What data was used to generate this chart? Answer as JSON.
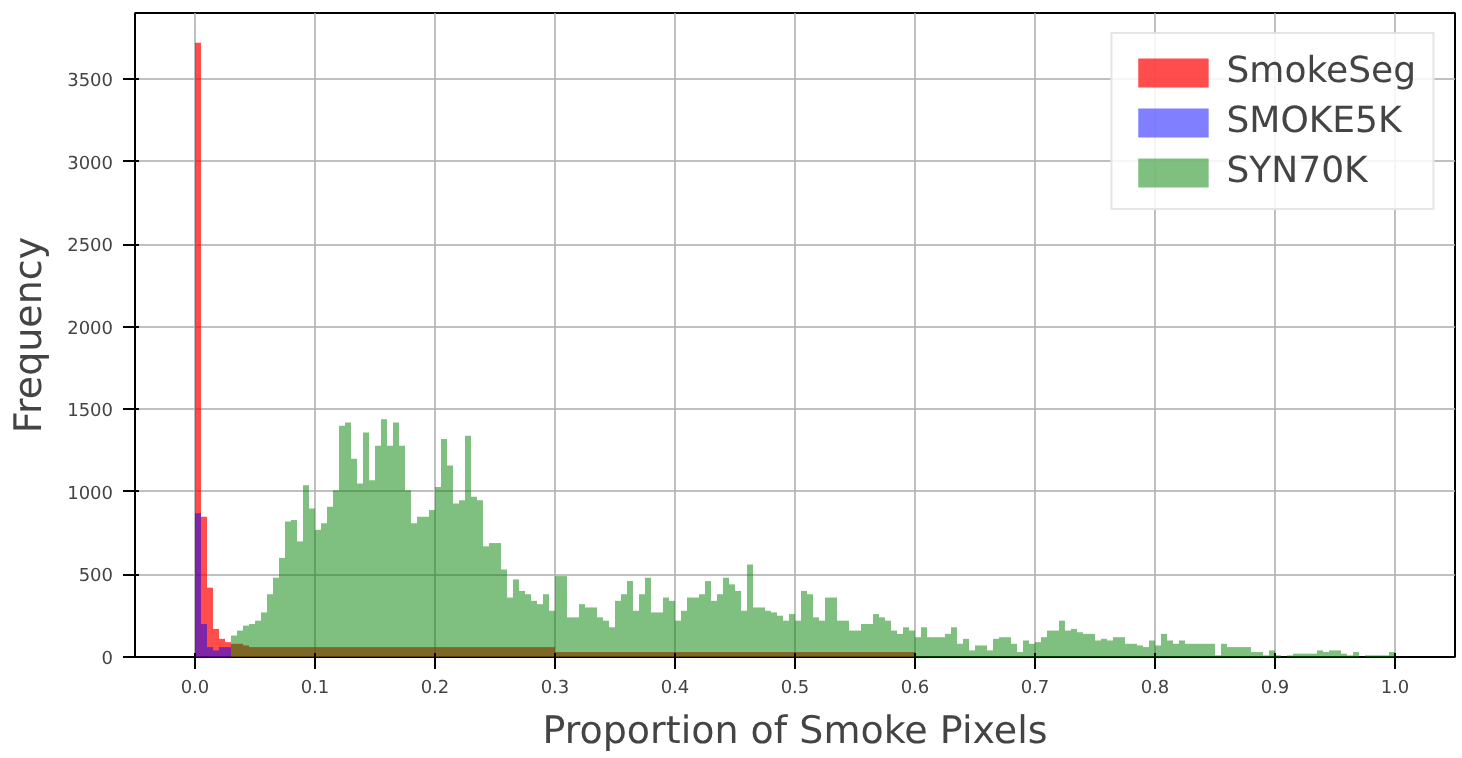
{
  "chart_data": {
    "type": "histogram",
    "xlabel": "Proportion of Smoke Pixels",
    "ylabel": "Frequency",
    "bins": [
      0,
      0.005,
      0.01,
      0.015,
      0.02,
      0.025,
      0.03,
      0.035,
      0.04,
      0.045,
      0.05,
      0.055,
      0.06,
      0.065,
      0.07,
      0.075,
      0.08,
      0.085,
      0.09,
      0.095,
      0.1,
      0.105,
      0.11,
      0.115,
      0.12,
      0.125,
      0.13,
      0.135,
      0.14,
      0.145,
      0.15,
      0.155,
      0.16,
      0.165,
      0.17,
      0.175,
      0.18,
      0.185,
      0.19,
      0.195,
      0.2,
      0.205,
      0.21,
      0.215,
      0.22,
      0.225,
      0.23,
      0.235,
      0.24,
      0.245,
      0.25,
      0.255,
      0.26,
      0.265,
      0.27,
      0.275,
      0.28,
      0.285,
      0.29,
      0.295,
      0.3,
      0.305,
      0.31,
      0.315,
      0.32,
      0.325,
      0.33,
      0.335,
      0.34,
      0.345,
      0.35,
      0.355,
      0.36,
      0.365,
      0.37,
      0.375,
      0.38,
      0.385,
      0.39,
      0.395,
      0.4,
      0.405,
      0.41,
      0.415,
      0.42,
      0.425,
      0.43,
      0.435,
      0.44,
      0.445,
      0.45,
      0.455,
      0.46,
      0.465,
      0.47,
      0.475,
      0.48,
      0.485,
      0.49,
      0.495,
      0.5,
      0.505,
      0.51,
      0.515,
      0.52,
      0.525,
      0.53,
      0.535,
      0.54,
      0.545,
      0.55,
      0.555,
      0.56,
      0.565,
      0.57,
      0.575,
      0.58,
      0.585,
      0.59,
      0.595,
      0.6,
      0.605,
      0.61,
      0.615,
      0.62,
      0.625,
      0.63,
      0.635,
      0.64,
      0.645,
      0.65,
      0.655,
      0.66,
      0.665,
      0.67,
      0.675,
      0.68,
      0.685,
      0.69,
      0.695,
      0.7,
      0.705,
      0.71,
      0.715,
      0.72,
      0.725,
      0.73,
      0.735,
      0.74,
      0.745,
      0.75,
      0.755,
      0.76,
      0.765,
      0.77,
      0.775,
      0.78,
      0.785,
      0.79,
      0.795,
      0.8,
      0.805,
      0.81,
      0.815,
      0.82,
      0.825,
      0.83,
      0.835,
      0.84,
      0.845,
      0.85,
      0.855,
      0.86,
      0.865,
      0.87,
      0.875,
      0.88,
      0.885,
      0.89,
      0.895,
      0.9,
      0.905,
      0.91,
      0.915,
      0.92,
      0.925,
      0.93,
      0.935,
      0.94,
      0.945,
      0.95,
      0.955,
      0.96,
      0.965,
      0.97,
      0.975,
      0.98,
      0.985,
      0.99,
      0.995,
      1
    ],
    "series": [
      {
        "name": "SmokeSeg",
        "color": "#ff0000",
        "values": [
          3720,
          850,
          420,
          170,
          110,
          90,
          80,
          80,
          70,
          60,
          60,
          60,
          60,
          60,
          60,
          60,
          60,
          60,
          60,
          60,
          60,
          60,
          60,
          60,
          60,
          60,
          60,
          60,
          60,
          60,
          60,
          60,
          60,
          60,
          60,
          60,
          60,
          60,
          60,
          60,
          60,
          60,
          60,
          60,
          60,
          60,
          60,
          60,
          60,
          60,
          60,
          60,
          60,
          60,
          60,
          60,
          60,
          60,
          60,
          60,
          30,
          30,
          30,
          30,
          30,
          30,
          30,
          30,
          30,
          30,
          30,
          30,
          30,
          30,
          30,
          30,
          30,
          30,
          30,
          30,
          30,
          30,
          30,
          30,
          30,
          30,
          30,
          30,
          30,
          30,
          30,
          30,
          30,
          30,
          30,
          30,
          30,
          30,
          30,
          30,
          30,
          30,
          30,
          30,
          30,
          30,
          30,
          30,
          30,
          30,
          30,
          30,
          30,
          30,
          30,
          30,
          30,
          30,
          30,
          30,
          null,
          null,
          null,
          null,
          null,
          null,
          null,
          null,
          null,
          null,
          null,
          null,
          null,
          null,
          null,
          null,
          null,
          null,
          null,
          null,
          null,
          null,
          null,
          null,
          null,
          null,
          null,
          null,
          null,
          null,
          null,
          null,
          null,
          null,
          null,
          null,
          null,
          null,
          null,
          null,
          null,
          null,
          null,
          null,
          null,
          null,
          null,
          null,
          null,
          null,
          null,
          null,
          null,
          null,
          null,
          null,
          null,
          null,
          null,
          null,
          null,
          null,
          null,
          null,
          null,
          null,
          null,
          null,
          null,
          null,
          null,
          null,
          null,
          null,
          null,
          null,
          null,
          null,
          null,
          null
        ]
      },
      {
        "name": "SMOKE5K",
        "color": "#0000ff",
        "values": [
          870,
          200,
          60,
          40,
          60,
          60,
          null,
          null,
          null,
          null,
          null,
          null,
          null,
          null,
          null,
          null,
          null,
          null,
          null,
          null,
          null,
          null,
          null,
          null,
          null,
          null,
          null,
          null,
          null,
          null,
          null,
          null,
          null,
          null,
          null,
          null,
          null,
          null,
          null,
          null,
          null,
          null,
          null,
          null,
          null,
          null,
          null,
          null,
          null,
          null,
          null,
          null,
          null,
          null,
          null,
          null,
          null,
          null,
          null,
          null,
          null,
          null,
          null,
          null,
          null,
          null,
          null,
          null,
          null,
          null,
          null,
          null,
          null,
          null,
          null,
          null,
          null,
          null,
          null,
          null,
          null,
          null,
          null,
          null,
          null,
          null,
          null,
          null,
          null,
          null,
          null,
          null,
          null,
          null,
          null,
          null,
          null,
          null,
          null,
          null,
          null,
          null,
          null,
          null,
          null,
          null,
          null,
          null,
          null,
          null,
          null,
          null,
          null,
          null,
          null,
          null,
          null,
          null,
          null,
          null,
          null,
          null,
          null,
          null,
          null,
          null,
          null,
          null,
          null,
          null,
          null,
          null,
          null,
          null,
          null,
          null,
          null,
          null,
          null,
          null,
          null,
          null,
          null,
          null,
          null,
          null,
          null,
          null,
          null,
          null,
          null,
          null,
          null,
          null,
          null,
          null,
          null,
          null,
          null,
          null,
          null,
          null,
          null,
          null,
          null,
          null,
          null,
          null,
          null,
          null,
          null,
          null,
          null,
          null,
          null,
          null,
          null,
          null,
          null,
          null,
          null,
          null,
          null,
          null,
          null,
          null,
          null,
          null,
          null,
          null,
          null,
          null,
          null,
          null,
          null,
          null,
          null,
          null,
          null,
          null
        ]
      },
      {
        "name": "SYN70K",
        "color": "#008000",
        "values": [
          0,
          0,
          null,
          null,
          null,
          null,
          130,
          160,
          190,
          200,
          220,
          270,
          380,
          480,
          600,
          820,
          830,
          700,
          1040,
          900,
          770,
          810,
          910,
          1010,
          1400,
          1420,
          1200,
          1050,
          1360,
          1070,
          1280,
          1440,
          1280,
          1420,
          1280,
          1010,
          810,
          850,
          850,
          890,
          1030,
          1320,
          1160,
          930,
          950,
          1340,
          970,
          950,
          670,
          690,
          690,
          530,
          360,
          470,
          400,
          380,
          340,
          320,
          380,
          280,
          490,
          490,
          240,
          240,
          320,
          300,
          300,
          240,
          220,
          180,
          340,
          380,
          460,
          280,
          380,
          480,
          270,
          270,
          360,
          340,
          220,
          280,
          360,
          360,
          380,
          460,
          340,
          380,
          480,
          440,
          400,
          280,
          560,
          300,
          300,
          280,
          270,
          250,
          220,
          260,
          220,
          400,
          380,
          240,
          220,
          360,
          360,
          220,
          220,
          160,
          160,
          200,
          200,
          260,
          240,
          220,
          160,
          140,
          180,
          160,
          120,
          180,
          120,
          120,
          120,
          140,
          180,
          80,
          110,
          40,
          70,
          70,
          40,
          110,
          120,
          120,
          80,
          30,
          100,
          80,
          90,
          120,
          160,
          160,
          220,
          160,
          170,
          150,
          140,
          140,
          100,
          110,
          100,
          120,
          120,
          80,
          80,
          70,
          60,
          100,
          70,
          140,
          100,
          80,
          100,
          80,
          80,
          80,
          80,
          80,
          10,
          80,
          60,
          60,
          60,
          60,
          30,
          30,
          10,
          40,
          10,
          0,
          10,
          20,
          20,
          20,
          20,
          40,
          30,
          40,
          40,
          20,
          10,
          30,
          0,
          10,
          10,
          10,
          10,
          30
        ]
      }
    ],
    "xlim": [
      -0.05,
      1.05
    ],
    "xticks": [
      {
        "value": 0,
        "label": "0.0"
      },
      0.1,
      0.2,
      0.3,
      0.4,
      0.5,
      0.6,
      0.7,
      0.8,
      0.9,
      {
        "value": 1,
        "label": "1.0"
      }
    ],
    "ylim": [
      0,
      3900
    ],
    "yticks": [
      0,
      500,
      1000,
      1500,
      2000,
      2500,
      3000,
      3500
    ],
    "grid": true,
    "legend": "top right"
  }
}
